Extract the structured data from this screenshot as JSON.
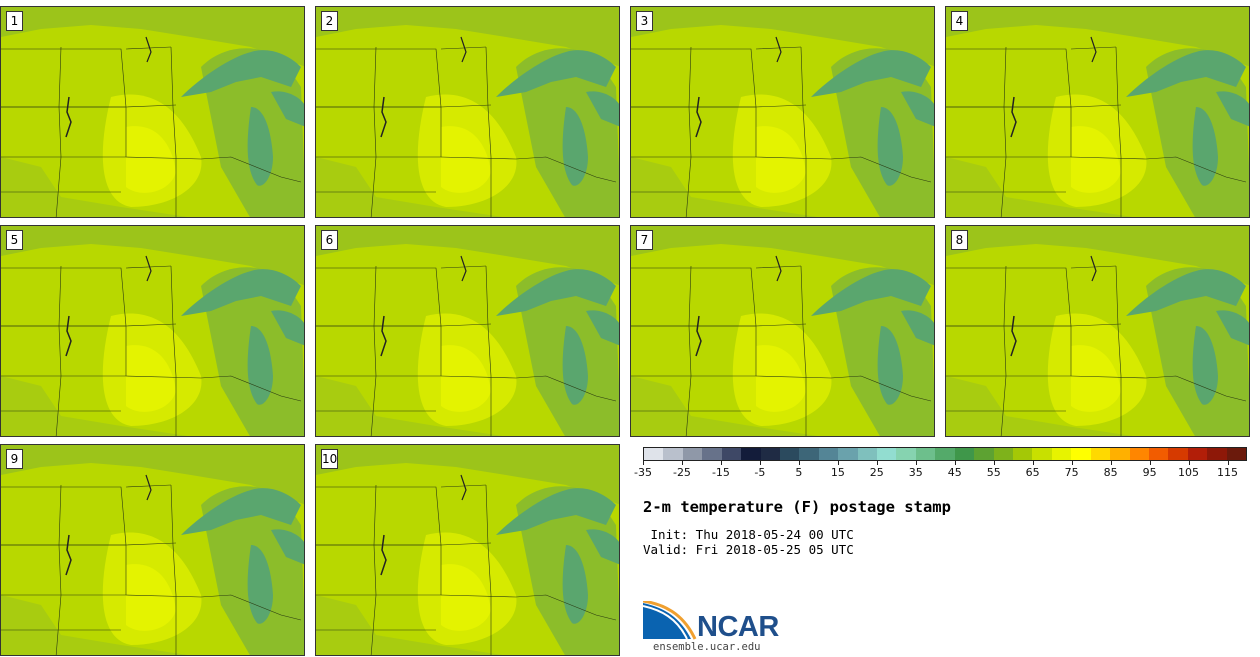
{
  "members": [
    "1",
    "2",
    "3",
    "4",
    "5",
    "6",
    "7",
    "8",
    "9",
    "10"
  ],
  "colorbar": {
    "colors": [
      "#dfe3ea",
      "#b9c0cc",
      "#8f98a8",
      "#67728a",
      "#3e4866",
      "#131c3a",
      "#1f2b44",
      "#2b4a5e",
      "#3d6678",
      "#548596",
      "#6aa2ac",
      "#7fc0bd",
      "#92ddd0",
      "#86d3b0",
      "#6dbf8c",
      "#54aa6a",
      "#3f974a",
      "#5da232",
      "#7eb21b",
      "#a4c806",
      "#c8e000",
      "#e7f300",
      "#ffff00",
      "#ffd900",
      "#ffb000",
      "#ff8600",
      "#f25c00",
      "#d63a00",
      "#b21e08",
      "#8e1808",
      "#6b1a0c"
    ],
    "tick_labels": [
      "-35",
      "-25",
      "-15",
      "-5",
      "5",
      "15",
      "25",
      "35",
      "45",
      "55",
      "65",
      "75",
      "85",
      "95",
      "105",
      "115"
    ]
  },
  "title": "2-m temperature (F) postage stamp",
  "init": " Init: Thu 2018-05-24 00 UTC",
  "valid": "Valid: Fri 2018-05-25 05 UTC",
  "logo": {
    "name": "NCAR",
    "url": "ensemble.ucar.edu"
  }
}
